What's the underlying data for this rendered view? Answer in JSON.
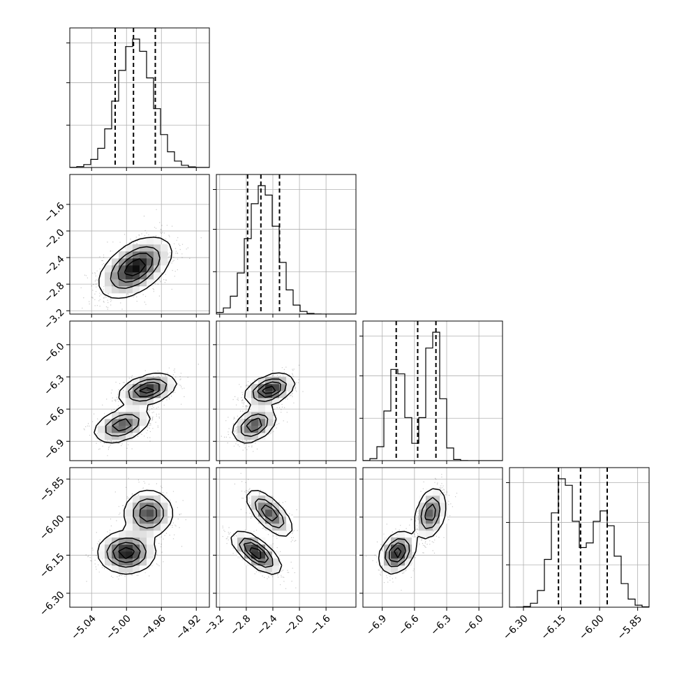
{
  "chart_data": {
    "type": "corner",
    "parameters": [
      {
        "range": [
          -5.065,
          -4.905
        ],
        "ticks": [
          -5.04,
          -5.0,
          -4.96,
          -4.92
        ],
        "tick_labels": [
          "−5.04",
          "−5.00",
          "−4.96",
          "−4.92"
        ],
        "quantiles": [
          -5.013,
          -4.992,
          -4.967
        ],
        "mean": -4.99,
        "sd": 0.02
      },
      {
        "range": [
          -3.25,
          -1.15
        ],
        "ticks": [
          -3.2,
          -2.8,
          -2.4,
          -2.0,
          -1.6
        ],
        "tick_labels": [
          "−3.2",
          "−2.8",
          "−2.4",
          "−2.0",
          "−1.6"
        ],
        "quantiles": [
          -2.78,
          -2.58,
          -2.3
        ],
        "mean": -2.55,
        "sd": 0.22
      },
      {
        "range": [
          -7.08,
          -5.78
        ],
        "ticks": [
          -6.9,
          -6.6,
          -6.3,
          -6.0
        ],
        "tick_labels": [
          "−6.9",
          "−6.6",
          "−6.3",
          "−6.0"
        ],
        "quantiles": [
          -6.77,
          -6.57,
          -6.4
        ],
        "mixture": [
          {
            "weight": 0.45,
            "mean": -6.76,
            "sd": 0.08
          },
          {
            "weight": 0.55,
            "mean": -6.42,
            "sd": 0.07
          }
        ]
      },
      {
        "range": [
          -6.355,
          -5.805
        ],
        "ticks": [
          -6.3,
          -6.15,
          -6.0,
          -5.85
        ],
        "tick_labels": [
          "−6.30",
          "−6.15",
          "−6.00",
          "−5.85"
        ],
        "quantiles": [
          -6.162,
          -6.075,
          -5.97
        ],
        "mixture": [
          {
            "weight": 0.55,
            "mean": -6.14,
            "sd": 0.045
          },
          {
            "weight": 0.45,
            "mean": -5.985,
            "sd": 0.05
          }
        ]
      }
    ],
    "hist_bins": 20,
    "grid": true,
    "scatter_density": [
      {
        "row": 1,
        "col": 0,
        "clusters": [
          {
            "mx": -4.99,
            "my": -2.55,
            "sx": 0.02,
            "sy": 0.22,
            "r": 0.5,
            "w": 1
          }
        ]
      },
      {
        "row": 2,
        "col": 0,
        "clusters": [
          {
            "mx": -5.005,
            "my": -6.75,
            "sx": 0.016,
            "sy": 0.08,
            "r": 0.4,
            "w": 0.45
          },
          {
            "mx": -4.976,
            "my": -6.42,
            "sx": 0.016,
            "sy": 0.07,
            "r": 0.4,
            "w": 0.55
          }
        ]
      },
      {
        "row": 2,
        "col": 1,
        "clusters": [
          {
            "mx": -2.68,
            "my": -6.75,
            "sx": 0.16,
            "sy": 0.08,
            "r": 0.4,
            "w": 0.45
          },
          {
            "mx": -2.45,
            "my": -6.42,
            "sx": 0.18,
            "sy": 0.07,
            "r": 0.4,
            "w": 0.55
          }
        ]
      },
      {
        "row": 3,
        "col": 0,
        "clusters": [
          {
            "mx": -5.0,
            "my": -6.14,
            "sx": 0.016,
            "sy": 0.04,
            "r": 0.0,
            "w": 0.55
          },
          {
            "mx": -4.975,
            "my": -5.985,
            "sx": 0.014,
            "sy": 0.045,
            "r": 0.0,
            "w": 0.45
          }
        ]
      },
      {
        "row": 3,
        "col": 1,
        "clusters": [
          {
            "mx": -2.65,
            "my": -6.14,
            "sx": 0.18,
            "sy": 0.04,
            "r": -0.7,
            "w": 0.55
          },
          {
            "mx": -2.45,
            "my": -5.985,
            "sx": 0.17,
            "sy": 0.045,
            "r": -0.7,
            "w": 0.45
          }
        ]
      },
      {
        "row": 3,
        "col": 2,
        "clusters": [
          {
            "mx": -6.76,
            "my": -6.14,
            "sx": 0.08,
            "sy": 0.04,
            "r": 0.3,
            "w": 0.55
          },
          {
            "mx": -6.45,
            "my": -5.985,
            "sx": 0.07,
            "sy": 0.05,
            "r": 0.3,
            "w": 0.45
          }
        ]
      }
    ]
  }
}
